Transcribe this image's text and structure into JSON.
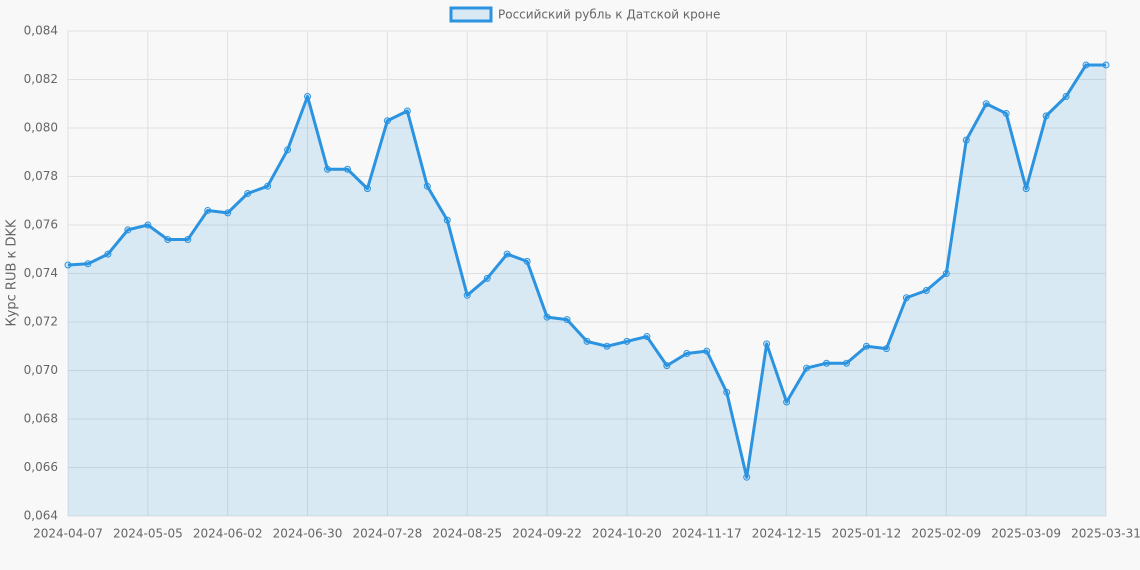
{
  "chart_data": {
    "type": "line",
    "legend": "Российский рубль к Датской кроне",
    "y_label": "Курс RUB к DKK",
    "color": "#2b93e0",
    "fill": "rgba(43,147,224,0.15)",
    "grid": true,
    "categories": [
      "2024-04-07",
      null,
      null,
      null,
      "2024-05-05",
      null,
      null,
      null,
      "2024-06-02",
      null,
      null,
      null,
      "2024-06-30",
      null,
      null,
      null,
      "2024-07-28",
      null,
      null,
      null,
      "2024-08-25",
      null,
      null,
      null,
      "2024-09-22",
      null,
      null,
      null,
      "2024-10-20",
      null,
      null,
      null,
      "2024-11-17",
      null,
      null,
      null,
      "2024-12-15",
      null,
      null,
      null,
      "2025-01-12",
      null,
      null,
      null,
      "2025-02-09",
      null,
      null,
      null,
      "2025-03-09",
      null,
      null,
      null,
      "2025-03-31"
    ],
    "values": [
      0.07435,
      0.0744,
      0.0748,
      0.0758,
      0.076,
      0.0754,
      0.0754,
      0.0766,
      0.0765,
      0.0773,
      0.0776,
      0.0791,
      0.0813,
      0.0783,
      0.0783,
      0.0775,
      0.0803,
      0.0807,
      0.0776,
      0.0762,
      0.0731,
      0.0738,
      0.0748,
      0.0745,
      0.0722,
      0.0721,
      0.0712,
      0.071,
      0.0712,
      0.0714,
      0.0702,
      0.0707,
      0.0708,
      0.0691,
      0.0656,
      0.0711,
      0.0687,
      0.0701,
      0.0703,
      0.0703,
      0.071,
      0.0709,
      0.073,
      0.0733,
      0.074,
      0.0795,
      0.081,
      0.0806,
      0.0775,
      0.0805,
      0.0813,
      0.0826,
      0.0826
    ],
    "ylim": [
      0.064,
      0.084
    ],
    "yticks": [
      {
        "value": 0.064,
        "label": "0,064"
      },
      {
        "value": 0.066,
        "label": "0,066"
      },
      {
        "value": 0.068,
        "label": "0,068"
      },
      {
        "value": 0.07,
        "label": "0,070"
      },
      {
        "value": 0.072,
        "label": "0,072"
      },
      {
        "value": 0.074,
        "label": "0,074"
      },
      {
        "value": 0.076,
        "label": "0,076"
      },
      {
        "value": 0.078,
        "label": "0,078"
      },
      {
        "value": 0.08,
        "label": "0,080"
      },
      {
        "value": 0.082,
        "label": "0,082"
      },
      {
        "value": 0.084,
        "label": "0,084"
      }
    ]
  }
}
